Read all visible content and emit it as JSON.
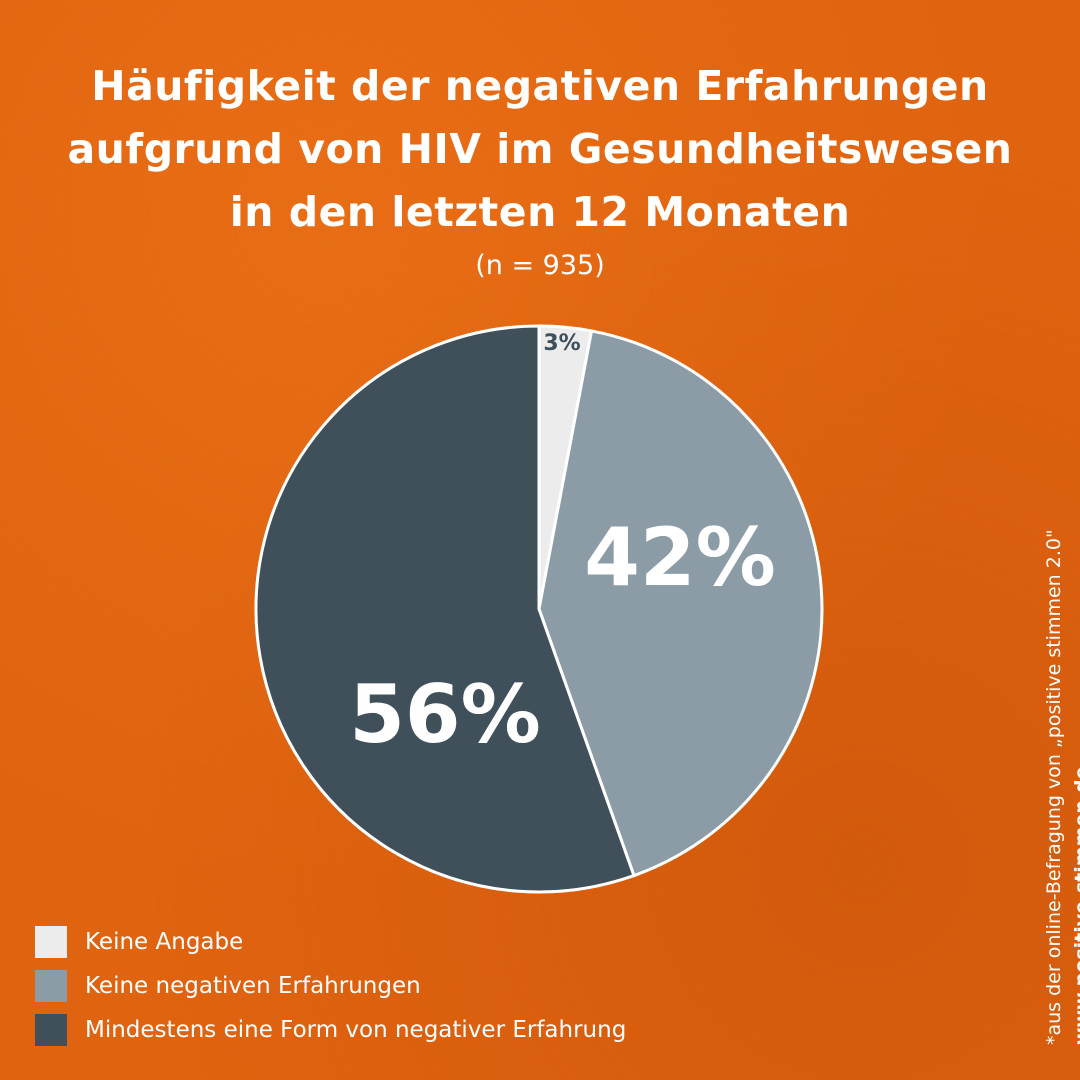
{
  "title": [
    "Häufigkeit der negativen Erfahrungen",
    "aufgrund von HIV im Gesundheitswesen",
    "in den letzten 12 Monaten"
  ],
  "sample": "(n = 935)",
  "footnote": "*aus der online-Befragung von „positive stimmen 2.0\"",
  "website": "www.positive-stimmen.de",
  "chart_data": {
    "type": "pie",
    "title": "Häufigkeit der negativen Erfahrungen aufgrund von HIV im Gesundheitswesen in den letzten 12 Monaten",
    "start": "top, clockwise",
    "legend_position": "bottom-left",
    "slices": [
      {
        "label": "Keine Angabe",
        "value": 3,
        "display": "3%",
        "color": "#ececec",
        "text_color": "#3d4f5a"
      },
      {
        "label": "Keine negativen Erfahrungen",
        "value": 42,
        "display": "42%",
        "color": "#8c9ca7",
        "text_color": "#ffffff"
      },
      {
        "label": "Mindestens eine Form von negativer Erfahrung",
        "value": 56,
        "display": "56%",
        "color": "#3f505b",
        "text_color": "#ffffff"
      }
    ]
  }
}
